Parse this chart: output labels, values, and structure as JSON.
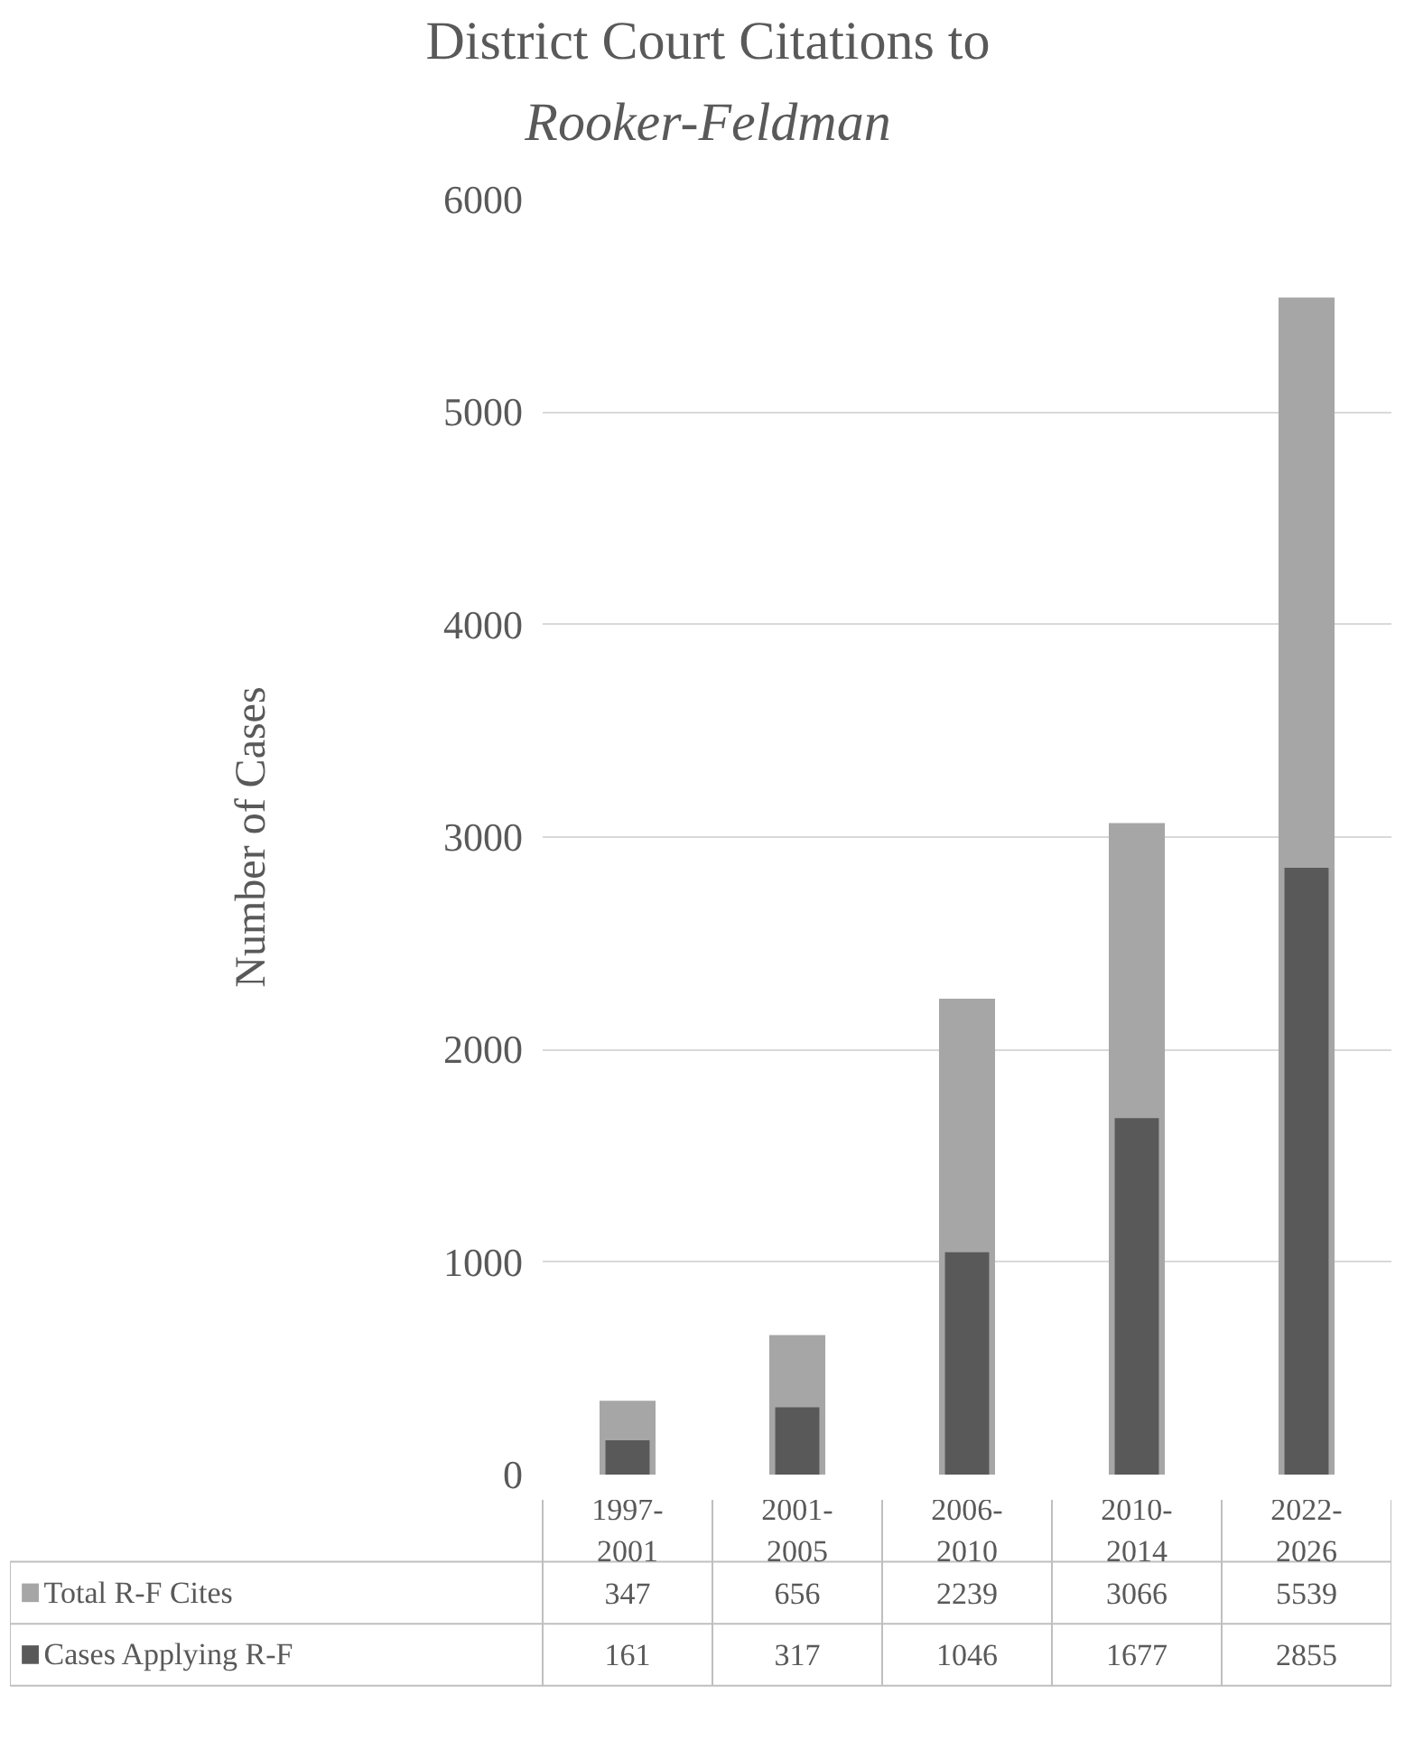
{
  "chart_data": {
    "type": "bar",
    "title": "District Court Citations to Rooker-Feldman",
    "ylabel": "Number of Cases",
    "categories": [
      "1997-2001",
      "2001-2005",
      "2006-2010",
      "2010-2014",
      "2022-2026"
    ],
    "series": [
      {
        "name": "Total R-F Cites",
        "color": "#a6a6a6",
        "values": [
          347,
          656,
          2239,
          3066,
          5539
        ]
      },
      {
        "name": "Cases Applying R-F",
        "color": "#595959",
        "values": [
          161,
          317,
          1046,
          1677,
          2855
        ]
      }
    ],
    "ylim": [
      0,
      6000
    ],
    "yticks": [
      0,
      1000,
      2000,
      3000,
      4000,
      5000,
      6000
    ],
    "grid": "y",
    "legend": "bottom",
    "data_labels": true
  }
}
